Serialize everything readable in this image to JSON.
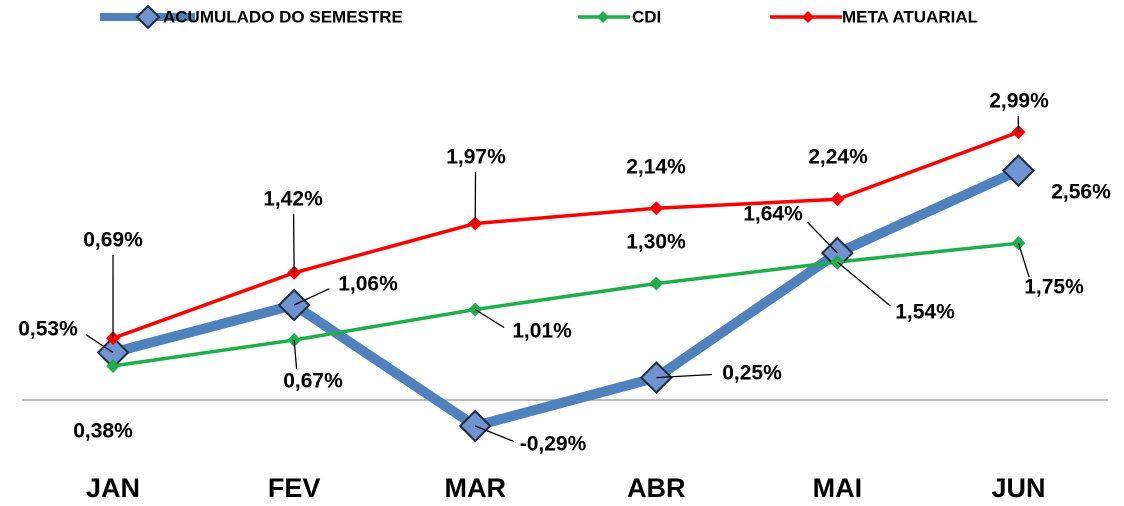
{
  "chart_data": {
    "type": "line",
    "categories": [
      "JAN",
      "FEV",
      "MAR",
      "ABR",
      "MAI",
      "JUN"
    ],
    "series": [
      {
        "name": "ACUMULADO DO SEMESTRE",
        "color": "#4f81bd",
        "values": [
          0.53,
          1.06,
          -0.29,
          0.25,
          1.64,
          2.56
        ],
        "value_labels": [
          "0,53%",
          "1,06%",
          "-0,29%",
          "0,25%",
          "1,64%",
          "2,56%"
        ]
      },
      {
        "name": "CDI",
        "color": "#1fae4b",
        "values": [
          0.38,
          0.67,
          1.01,
          1.3,
          1.54,
          1.75
        ],
        "value_labels": [
          "0,38%",
          "0,67%",
          "1,01%",
          "1,30%",
          "1,54%",
          "1,75%"
        ]
      },
      {
        "name": "META ATUARIAL",
        "color": "#ff0000",
        "values": [
          0.69,
          1.42,
          1.97,
          2.14,
          2.24,
          2.99
        ],
        "value_labels": [
          "0,69%",
          "1,42%",
          "1,97%",
          "2,14%",
          "2,24%",
          "2,99%"
        ]
      }
    ],
    "ylim": [
      -0.5,
      3.5
    ],
    "legend": "top"
  }
}
